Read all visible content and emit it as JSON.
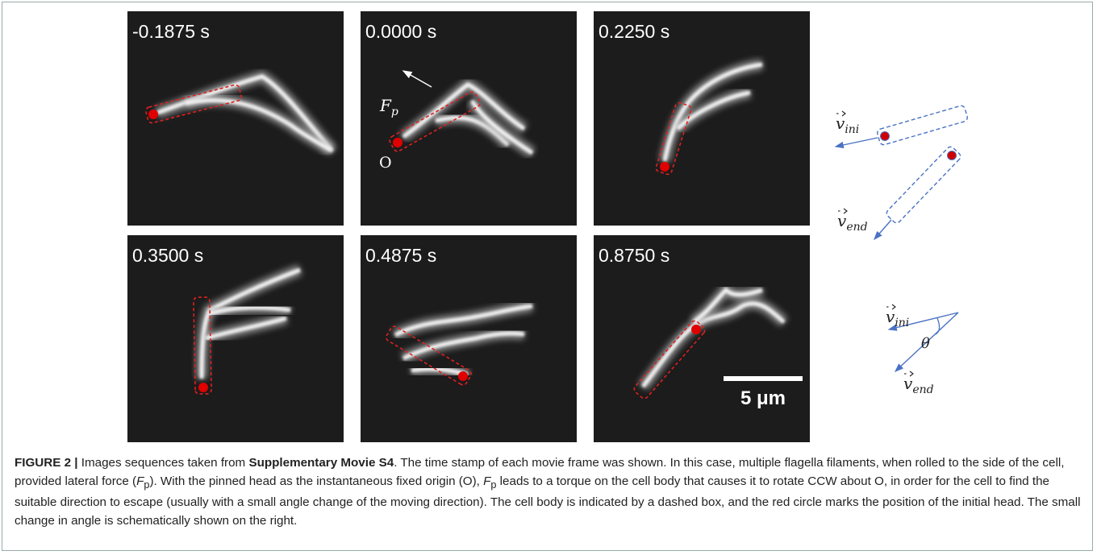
{
  "figure": {
    "panels": [
      {
        "time": "-0.1875 s"
      },
      {
        "time": "0.0000 s",
        "force_label": {
          "symbol": "F",
          "subscript": "p"
        },
        "origin_label": "O"
      },
      {
        "time": "0.2250 s"
      },
      {
        "time": "0.3500 s"
      },
      {
        "time": "0.4875 s"
      },
      {
        "time": "0.8750 s",
        "scale_bar": "5 μm"
      }
    ],
    "schematic": {
      "v_ini": {
        "symbol": "v",
        "subscript": "ini"
      },
      "v_end": {
        "symbol": "v",
        "subscript": "end"
      },
      "angle": "θ"
    }
  },
  "caption": {
    "label": "FIGURE 2 |",
    "intro": "Images sequences taken from",
    "source": "Supplementary Movie S4",
    "body_1": ". The time stamp of each movie frame was shown. In this case, multiple flagella filaments, when rolled to the side of the cell, provided lateral force (",
    "force": {
      "symbol": "F",
      "subscript": "p"
    },
    "body_2": "). With the pinned head as the instantaneous fixed origin (O), ",
    "body_3": " leads to a torque on the cell body that causes it to rotate CCW about O, in order for the cell to find the suitable direction to escape (usually with a small angle change of the moving direction). The cell body is indicated by a dashed box, and the red circle marks the position of the initial head. The small change in angle is schematically shown on the right."
  }
}
